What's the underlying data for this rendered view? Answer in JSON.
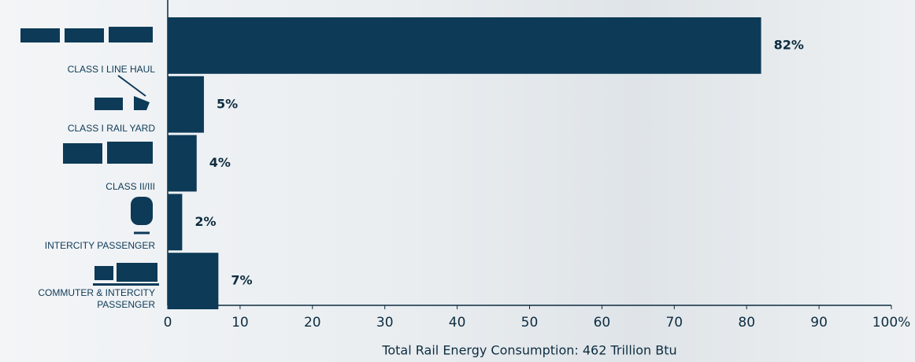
{
  "chart_data": {
    "type": "bar",
    "orientation": "horizontal",
    "categories": [
      "CLASS I LINE HAUL",
      "CLASS I RAIL YARD",
      "CLASS II/III",
      "INTERCITY PASSENGER",
      "COMMUTER & INTERCITY PASSENGER"
    ],
    "values": [
      82,
      5,
      4,
      2,
      7
    ],
    "value_labels": [
      "82%",
      "5%",
      "4%",
      "2%",
      "7%"
    ],
    "color": "#0d3a57",
    "xlabel": "Total Rail Energy Consumption: 462 Trillion Btu",
    "xlim": [
      0,
      100
    ],
    "xticks": [
      0,
      10,
      20,
      30,
      40,
      50,
      60,
      70,
      80,
      90,
      {
        "value": 100,
        "label": "100%"
      }
    ],
    "grid": false
  }
}
